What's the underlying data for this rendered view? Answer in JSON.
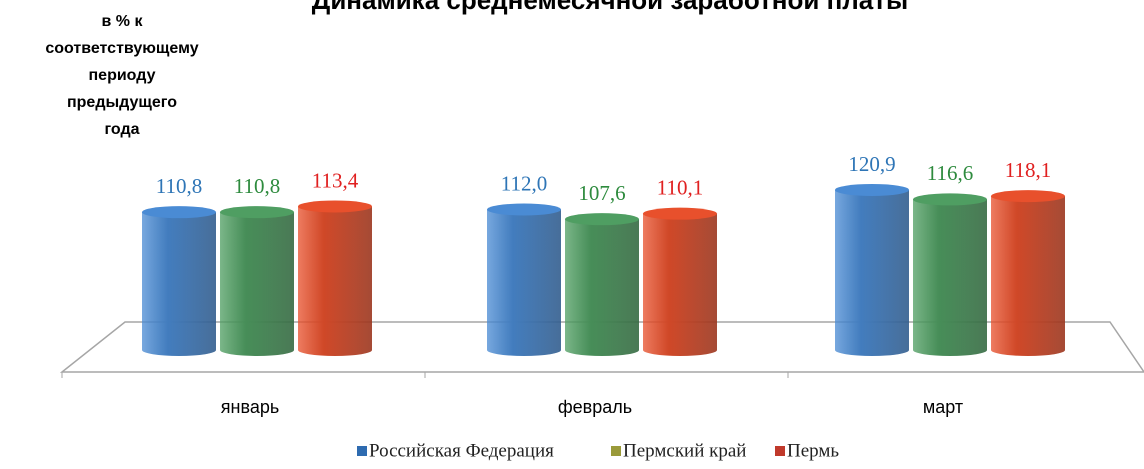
{
  "chart_data": {
    "type": "bar3d",
    "title": "Динамика среднемесячной заработной платы",
    "y_label": [
      "в % к",
      "соответствующему",
      "периоду",
      "предыдущего",
      "года"
    ],
    "categories": [
      "январь",
      "февраль",
      "март"
    ],
    "series": [
      {
        "name": "Российская Федерация",
        "color": "#4a8bd4",
        "label_color": "#2e75b6",
        "values": [
          110.8,
          112.0,
          120.9
        ],
        "value_labels": [
          "110,8",
          "112,0",
          "120,9"
        ]
      },
      {
        "name": "Пермский край",
        "color": "#4f9e62",
        "label_color": "#2e8b3e",
        "values": [
          110.8,
          107.6,
          116.6
        ],
        "value_labels": [
          "110,8",
          "107,6",
          "116,6"
        ]
      },
      {
        "name": "Пермь",
        "color": "#e8502c",
        "label_color": "#e02020",
        "values": [
          113.4,
          110.1,
          118.1
        ],
        "value_labels": [
          "113,4",
          "110,1",
          "118,1"
        ]
      }
    ],
    "legend_colors": [
      "#2e6bb0",
      "#9a9a3a",
      "#c0392b"
    ],
    "ylim": [
      48,
      130
    ],
    "legend": "bottom"
  }
}
